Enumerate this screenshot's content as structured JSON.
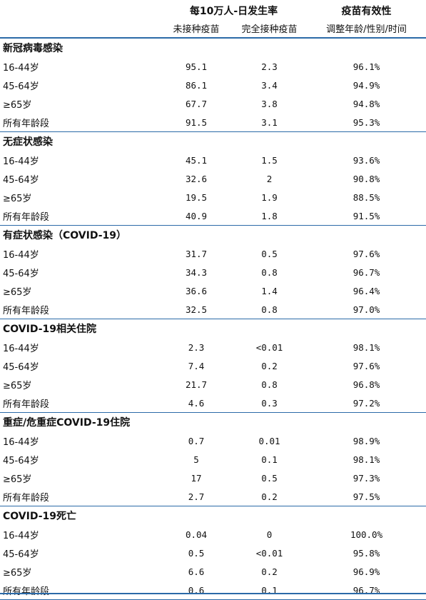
{
  "header": {
    "rate_title": "每10万人-日发生率",
    "efficacy_title": "疫苗有效性",
    "col_unvaccinated": "未接种疫苗",
    "col_vaccinated": "完全接种疫苗",
    "col_efficacy": "调整年龄/性别/时间"
  },
  "sections": [
    {
      "title": "新冠病毒感染",
      "rows": [
        {
          "label": "16-44岁",
          "unvaccinated": "95.1",
          "vaccinated": "2.3",
          "efficacy": "96.1%"
        },
        {
          "label": "45-64岁",
          "unvaccinated": "86.1",
          "vaccinated": "3.4",
          "efficacy": "94.9%"
        },
        {
          "label": "≥65岁",
          "unvaccinated": "67.7",
          "vaccinated": "3.8",
          "efficacy": "94.8%"
        },
        {
          "label": "所有年龄段",
          "unvaccinated": "91.5",
          "vaccinated": "3.1",
          "efficacy": "95.3%"
        }
      ]
    },
    {
      "title": "无症状感染",
      "rows": [
        {
          "label": "16-44岁",
          "unvaccinated": "45.1",
          "vaccinated": "1.5",
          "efficacy": "93.6%"
        },
        {
          "label": "45-64岁",
          "unvaccinated": "32.6",
          "vaccinated": "2",
          "efficacy": "90.8%"
        },
        {
          "label": "≥65岁",
          "unvaccinated": "19.5",
          "vaccinated": "1.9",
          "efficacy": "88.5%"
        },
        {
          "label": "所有年龄段",
          "unvaccinated": "40.9",
          "vaccinated": "1.8",
          "efficacy": "91.5%"
        }
      ]
    },
    {
      "title": "有症状感染（COVID-19）",
      "rows": [
        {
          "label": "16-44岁",
          "unvaccinated": "31.7",
          "vaccinated": "0.5",
          "efficacy": "97.6%"
        },
        {
          "label": "45-64岁",
          "unvaccinated": "34.3",
          "vaccinated": "0.8",
          "efficacy": "96.7%"
        },
        {
          "label": "≥65岁",
          "unvaccinated": "36.6",
          "vaccinated": "1.4",
          "efficacy": "96.4%"
        },
        {
          "label": "所有年龄段",
          "unvaccinated": "32.5",
          "vaccinated": "0.8",
          "efficacy": "97.0%"
        }
      ]
    },
    {
      "title": "COVID-19相关住院",
      "rows": [
        {
          "label": "16-44岁",
          "unvaccinated": "2.3",
          "vaccinated": "<0.01",
          "efficacy": "98.1%"
        },
        {
          "label": "45-64岁",
          "unvaccinated": "7.4",
          "vaccinated": "0.2",
          "efficacy": "97.6%"
        },
        {
          "label": "≥65岁",
          "unvaccinated": "21.7",
          "vaccinated": "0.8",
          "efficacy": "96.8%"
        },
        {
          "label": "所有年龄段",
          "unvaccinated": "4.6",
          "vaccinated": "0.3",
          "efficacy": "97.2%"
        }
      ]
    },
    {
      "title": "重症/危重症COVID-19住院",
      "rows": [
        {
          "label": "16-44岁",
          "unvaccinated": "0.7",
          "vaccinated": "0.01",
          "efficacy": "98.9%"
        },
        {
          "label": "45-64岁",
          "unvaccinated": "5",
          "vaccinated": "0.1",
          "efficacy": "98.1%"
        },
        {
          "label": "≥65岁",
          "unvaccinated": "17",
          "vaccinated": "0.5",
          "efficacy": "97.3%"
        },
        {
          "label": "所有年龄段",
          "unvaccinated": "2.7",
          "vaccinated": "0.2",
          "efficacy": "97.5%"
        }
      ]
    },
    {
      "title": "COVID-19死亡",
      "rows": [
        {
          "label": "16-44岁",
          "unvaccinated": "0.04",
          "vaccinated": "0",
          "efficacy": "100.0%"
        },
        {
          "label": "45-64岁",
          "unvaccinated": "0.5",
          "vaccinated": "<0.01",
          "efficacy": "95.8%"
        },
        {
          "label": "≥65岁",
          "unvaccinated": "6.6",
          "vaccinated": "0.2",
          "efficacy": "96.9%"
        },
        {
          "label": "所有年龄段",
          "unvaccinated": "0.6",
          "vaccinated": "0.1",
          "efficacy": "96.7%"
        }
      ]
    }
  ]
}
